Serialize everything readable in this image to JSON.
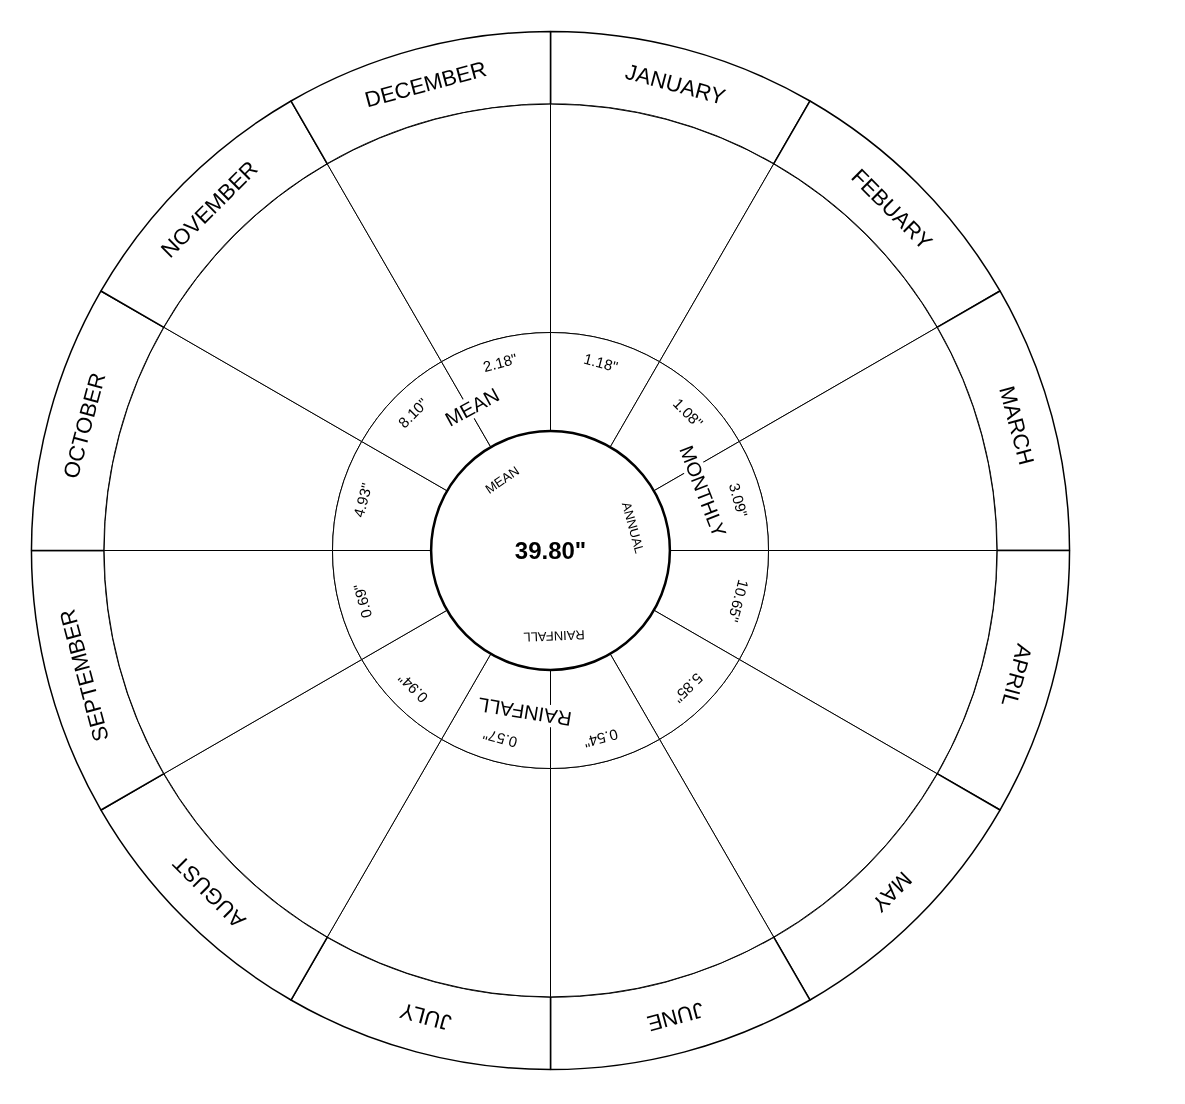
{
  "chart_data": {
    "type": "other",
    "categories": [
      "JANUARY",
      "FEBUARY",
      "MARCH",
      "APRIL",
      "MAY",
      "JUNE",
      "JULY",
      "AUGUST",
      "SEPTEMBER",
      "OCTOBER",
      "NOVEMBER",
      "DECEMBER"
    ],
    "values": [
      1.18,
      1.08,
      3.09,
      10.65,
      5.85,
      0.54,
      0.57,
      0.94,
      0.69,
      4.93,
      8.1,
      2.18
    ],
    "value_labels": [
      "1.18\"",
      "1.08\"",
      "3.09\"",
      "10.65\"",
      "5.85\"",
      "0.54\"",
      "0.57\"",
      "0.94\"",
      "0.69\"",
      "4.93\"",
      "8.10\"",
      "2.18\""
    ],
    "annotations": [
      "MEAN MONTHLY RAINFALL",
      "MEAN ANNUAL RAINFALL",
      "39.80\""
    ]
  }
}
